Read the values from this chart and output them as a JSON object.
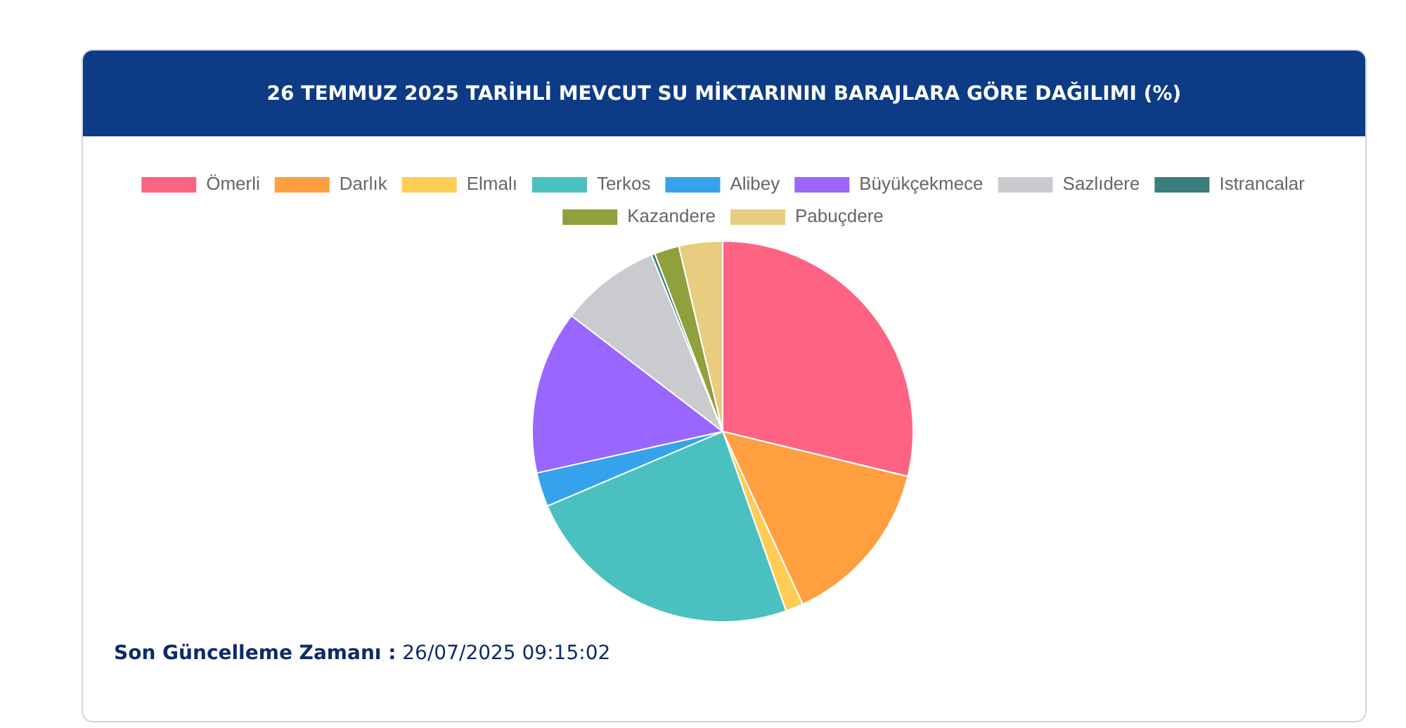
{
  "chart_data": {
    "type": "pie",
    "title": "26 TEMMUZ 2025 TARİHLİ MEVCUT SU MİKTARININ BARAJLARA GÖRE DAĞILIMI (%)",
    "categories": [
      "Ömerli",
      "Darlık",
      "Elmalı",
      "Terkos",
      "Alibey",
      "Büyükçekmece",
      "Sazlıdere",
      "Istrancalar",
      "Kazandere",
      "Pabuçdere"
    ],
    "values": [
      28.8,
      14.3,
      1.5,
      24.0,
      2.9,
      13.9,
      8.5,
      0.3,
      2.1,
      3.7
    ],
    "colors": [
      "#ff6384",
      "#ff9f40",
      "#ffcd56",
      "#4bc0c0",
      "#36a2eb",
      "#9966ff",
      "#c9cbcf",
      "#3a7d7d",
      "#8fa03d",
      "#e8cc80"
    ],
    "legend": "top",
    "annotations": [
      "Son Güncelleme Zamanı : 26/07/2025 09:15:02"
    ]
  }
}
